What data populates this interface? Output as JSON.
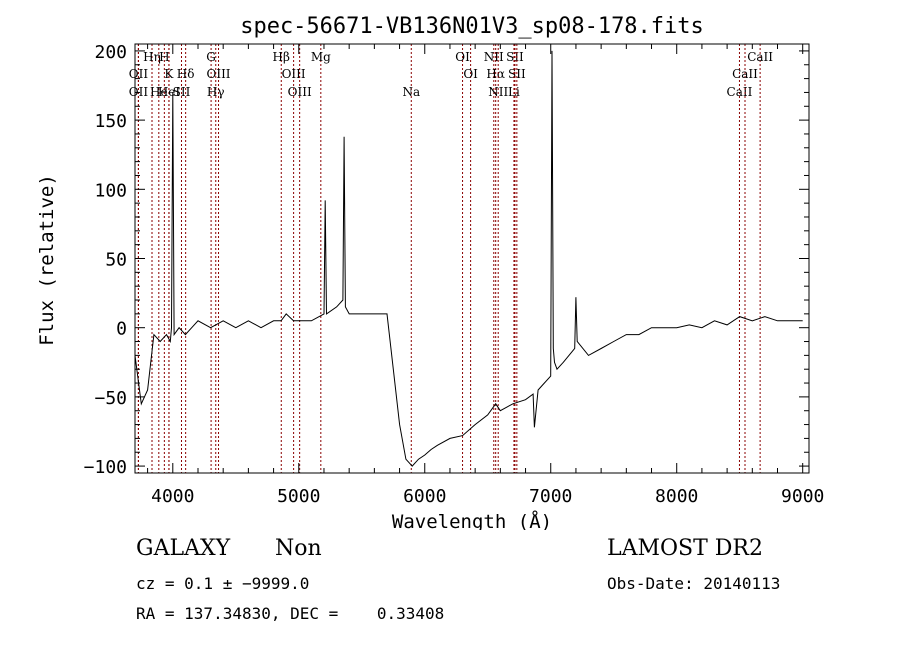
{
  "chart_data": {
    "type": "line",
    "title": "spec-56671-VB136N01V3_sp08-178.fits",
    "xlabel": "Wavelength (Å)",
    "ylabel": "Flux (relative)",
    "xlim": [
      3700,
      9050
    ],
    "ylim": [
      -105,
      205
    ],
    "x_ticks": [
      4000,
      5000,
      6000,
      7000,
      8000,
      9000
    ],
    "y_ticks": [
      -100,
      -50,
      0,
      50,
      100,
      150,
      200
    ],
    "x_tick_labels": [
      "4000",
      "5000",
      "6000",
      "7000",
      "8000",
      "9000"
    ],
    "y_tick_labels": [
      "−100",
      "−50",
      "0",
      "50",
      "100",
      "150",
      "200"
    ],
    "grid": false,
    "series": [
      {
        "color": "#000000",
        "x": [
          3700,
          3750,
          3800,
          3850,
          3900,
          3950,
          3980,
          3990,
          4000,
          4010,
          4050,
          4100,
          4150,
          4200,
          4300,
          4400,
          4500,
          4600,
          4700,
          4800,
          4860,
          4900,
          4958,
          5007,
          5100,
          5200,
          5210,
          5220,
          5300,
          5350,
          5360,
          5370,
          5400,
          5500,
          5600,
          5700,
          5750,
          5800,
          5850,
          5900,
          5950,
          6000,
          6050,
          6100,
          6200,
          6300,
          6400,
          6500,
          6563,
          6600,
          6700,
          6800,
          6860,
          6870,
          6900,
          6950,
          7000,
          7010,
          7020,
          7030,
          7050,
          7100,
          7190,
          7200,
          7210,
          7300,
          7400,
          7500,
          7600,
          7700,
          7800,
          7900,
          8000,
          8100,
          8200,
          8300,
          8400,
          8500,
          8600,
          8700,
          8800,
          8900,
          9000
        ],
        "y": [
          -20,
          -55,
          -45,
          -5,
          -10,
          -5,
          -10,
          0,
          170,
          -5,
          0,
          -5,
          0,
          5,
          0,
          5,
          0,
          5,
          0,
          5,
          5,
          10,
          5,
          5,
          5,
          10,
          92,
          10,
          15,
          20,
          138,
          15,
          10,
          10,
          10,
          10,
          -30,
          -70,
          -95,
          -100,
          -95,
          -92,
          -88,
          -85,
          -80,
          -78,
          -70,
          -63,
          -55,
          -60,
          -55,
          -52,
          -48,
          -72,
          -45,
          -40,
          -35,
          200,
          -15,
          -25,
          -30,
          -25,
          -15,
          22,
          -10,
          -20,
          -15,
          -10,
          -5,
          -5,
          0,
          0,
          0,
          2,
          0,
          5,
          2,
          8,
          5,
          8,
          5,
          5,
          5
        ]
      }
    ],
    "line_markers": [
      {
        "label": "OII",
        "x": 3727,
        "row": 1
      },
      {
        "label": "OII",
        "x": 3727,
        "row": 2
      },
      {
        "label": "Hη",
        "x": 3835,
        "row": 0
      },
      {
        "label": "He",
        "x": 3889,
        "row": 2
      },
      {
        "label": "H",
        "x": 3933,
        "row": 0
      },
      {
        "label": "K",
        "x": 3969,
        "row": 1
      },
      {
        "label": "HeI",
        "x": 3970,
        "row": 2
      },
      {
        "label": "SII",
        "x": 4069,
        "row": 2
      },
      {
        "label": "Hδ",
        "x": 4102,
        "row": 1
      },
      {
        "label": "G",
        "x": 4304,
        "row": 0
      },
      {
        "label": "OIII",
        "x": 4363,
        "row": 1
      },
      {
        "label": "Hγ",
        "x": 4341,
        "row": 2
      },
      {
        "label": "Hβ",
        "x": 4861,
        "row": 0
      },
      {
        "label": "OIII",
        "x": 4959,
        "row": 1
      },
      {
        "label": "OIII",
        "x": 5007,
        "row": 2
      },
      {
        "label": "Mg",
        "x": 5175,
        "row": 0
      },
      {
        "label": "Na",
        "x": 5893,
        "row": 2
      },
      {
        "label": "OI",
        "x": 6300,
        "row": 0
      },
      {
        "label": "OI",
        "x": 6364,
        "row": 1
      },
      {
        "label": "NII",
        "x": 6548,
        "row": 0
      },
      {
        "label": "Hα",
        "x": 6563,
        "row": 1
      },
      {
        "label": "NII",
        "x": 6583,
        "row": 2
      },
      {
        "label": "SII",
        "x": 6716,
        "row": 0
      },
      {
        "label": "SII",
        "x": 6731,
        "row": 1
      },
      {
        "label": "Li",
        "x": 6708,
        "row": 2
      },
      {
        "label": "CaII",
        "x": 8498,
        "row": 2
      },
      {
        "label": "CaII",
        "x": 8542,
        "row": 1
      },
      {
        "label": "CaII",
        "x": 8662,
        "row": 0
      }
    ]
  },
  "info": {
    "object_class": "GALAXY",
    "subclass": "Non",
    "survey": "LAMOST DR2",
    "redshift_line": "cz = 0.1 ± −9999.0",
    "obs_date": "Obs-Date: 20140113",
    "coords": "RA = 137.34830, DEC =    0.33408"
  },
  "colors": {
    "spectrum": "#000000",
    "marker_lines": "#8b0000",
    "axes": "#000000",
    "background": "#ffffff"
  }
}
